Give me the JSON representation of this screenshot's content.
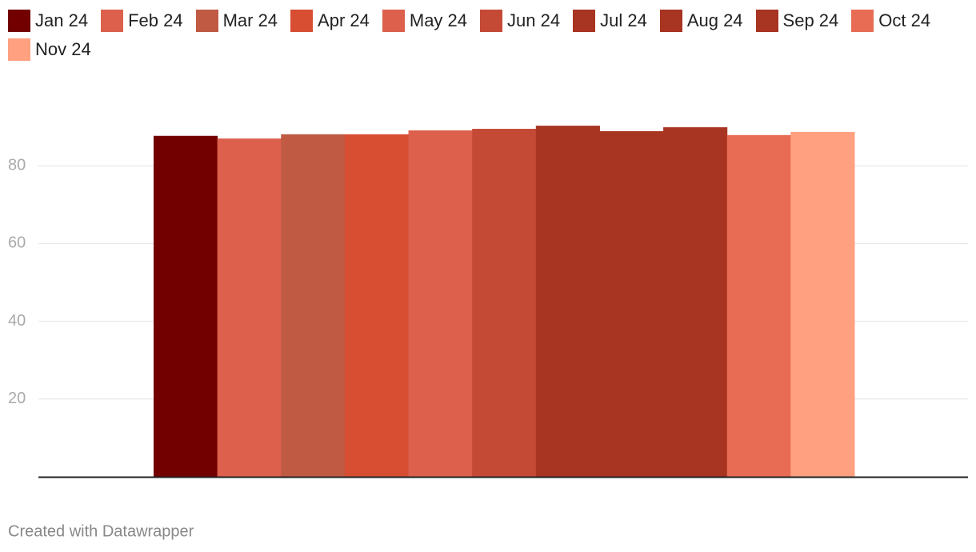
{
  "chart_data": {
    "type": "bar",
    "categories": [
      null
    ],
    "series": [
      {
        "name": "Jan 24",
        "color": "#720000",
        "values": [
          87.7
        ]
      },
      {
        "name": "Feb 24",
        "color": "#dc604b",
        "values": [
          87.0
        ]
      },
      {
        "name": "Mar 24",
        "color": "#c05a43",
        "values": [
          88.1
        ]
      },
      {
        "name": "Apr 24",
        "color": "#d84e33",
        "values": [
          88.1
        ]
      },
      {
        "name": "May 24",
        "color": "#dc604b",
        "values": [
          89.1
        ]
      },
      {
        "name": "Jun 24",
        "color": "#c44a36",
        "values": [
          89.5
        ]
      },
      {
        "name": "Jul 24",
        "color": "#a83422",
        "values": [
          90.3
        ]
      },
      {
        "name": "Aug 24",
        "color": "#a83422",
        "values": [
          88.9
        ]
      },
      {
        "name": "Sep 24",
        "color": "#a83422",
        "values": [
          89.9
        ]
      },
      {
        "name": "Oct 24",
        "color": "#e86c54",
        "values": [
          87.9
        ]
      },
      {
        "name": "Nov 24",
        "color": "#ffa080",
        "values": [
          88.7
        ]
      }
    ],
    "ylim": [
      0,
      100
    ],
    "yticks": [
      20,
      40,
      60,
      80
    ],
    "grid": true,
    "legend": "top"
  },
  "footer": "Created with Datawrapper"
}
